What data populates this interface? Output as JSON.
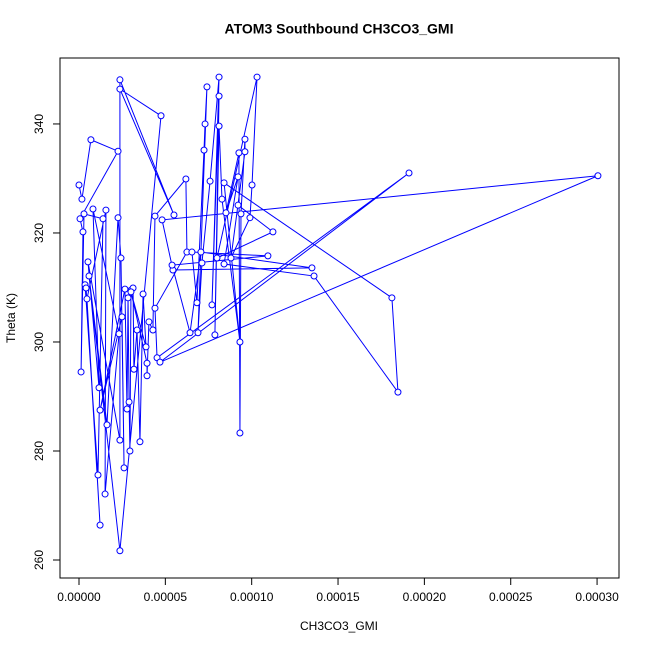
{
  "chart_data": {
    "type": "line",
    "title": "ATOM3 Southbound CH3CO3_GMI",
    "x_label": "CH3CO3_GMI",
    "y_label": "Theta (K)",
    "color": "#0000ff",
    "xlim": [
      -1.1e-05,
      0.0003127
    ],
    "ylim": [
      256.7,
      352.1
    ],
    "xticks": [
      {
        "value": 0,
        "label": "0.00000"
      },
      {
        "value": 5e-05,
        "label": "0.00005"
      },
      {
        "value": 0.0001,
        "label": "0.00010"
      },
      {
        "value": 0.00015,
        "label": "0.00015"
      },
      {
        "value": 0.0002,
        "label": "0.00020"
      },
      {
        "value": 0.00025,
        "label": "0.00025"
      },
      {
        "value": 0.0003,
        "label": "0.00030"
      }
    ],
    "yticks": [
      260,
      280,
      300,
      320,
      340
    ],
    "x": [
      0,
      1.7e-06,
      6.9e-06,
      2.26e-05,
      6e-07,
      2.3e-06,
      1.2e-06,
      2.9e-06,
      1.39e-05,
      1.1e-05,
      3.5e-06,
      4.1e-06,
      1.22e-05,
      4.6e-06,
      1.56e-05,
      1.51e-05,
      2.32e-05,
      8.1e-06,
      1.16e-05,
      5.2e-06,
      2.37e-05,
      2.37e-05,
      5.5e-05,
      2.37e-05,
      4.75e-05,
      2.37e-05,
      5.8e-06,
      1.62e-05,
      2.26e-05,
      2.43e-05,
      2.61e-05,
      2.49e-05,
      1.22e-05,
      2.66e-05,
      2.78e-05,
      2.84e-05,
      2.9e-05,
      2.95e-05,
      3.01e-05,
      3.13e-05,
      3.18e-05,
      3.36e-05,
      3.53e-05,
      3.71e-05,
      3.88e-05,
      3.01e-05,
      3.94e-05,
      3.94e-05,
      4.05e-05,
      4.28e-05,
      4.4e-05,
      6.19e-05,
      6.25e-05,
      4.4e-05,
      4.52e-05,
      0.0001911,
      4.69e-05,
      0.0003005,
      4.81e-05,
      5.44e-05,
      0.0001349,
      7.06e-05,
      6.43e-05,
      5.39e-05,
      0.0001094,
      6.54e-05,
      6.83e-05,
      7.24e-05,
      7.3e-05,
      7.41e-05,
      6.89e-05,
      7.12e-05,
      7.59e-05,
      8.11e-05,
      7.7e-05,
      8.11e-05,
      7.87e-05,
      8.11e-05,
      8.28e-05,
      9.32e-05,
      8.4e-05,
      0.0001812,
      0.0001847,
      0.0001361,
      8.4e-05,
      9.21e-05,
      8.51e-05,
      9.26e-05,
      9.32e-05,
      9.38e-05,
      9.61e-05,
      9.61e-05,
      8.8e-05,
      9.9e-05,
      0.0001002,
      0.0001031,
      7.99e-05,
      0.0001123,
      9.21e-05
    ],
    "values": [
      328.8,
      326.2,
      337.1,
      335.0,
      322.6,
      320.2,
      294.5,
      323.5,
      322.6,
      275.6,
      310.5,
      309.9,
      266.4,
      307.9,
      324.2,
      272.1,
      301.5,
      324.4,
      291.6,
      314.7,
      282.0,
      348.1,
      323.3,
      346.4,
      341.5,
      261.7,
      312.1,
      284.8,
      322.8,
      315.4,
      276.9,
      304.6,
      287.5,
      309.7,
      287.7,
      308.1,
      289.0,
      280.0,
      309.5,
      309.9,
      295.0,
      302.2,
      281.7,
      308.8,
      299.1,
      309.2,
      296.1,
      293.8,
      303.7,
      302.2,
      323.1,
      329.9,
      316.5,
      306.2,
      297.1,
      331.0,
      296.3,
      330.5,
      322.4,
      313.2,
      313.6,
      316.5,
      301.7,
      314.1,
      315.8,
      316.5,
      307.2,
      335.2,
      340.0,
      346.8,
      301.7,
      314.5,
      329.5,
      348.6,
      306.8,
      345.1,
      301.3,
      339.6,
      326.2,
      300.0,
      329.2,
      308.1,
      290.8,
      312.1,
      314.3,
      330.3,
      323.7,
      334.7,
      283.3,
      323.5,
      337.2,
      334.9,
      315.4,
      322.8,
      328.8,
      348.6,
      315.4,
      320.2,
      325.1
    ]
  }
}
